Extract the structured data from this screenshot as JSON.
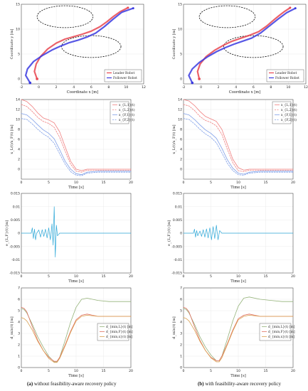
{
  "captions": {
    "left_tag": "(a)",
    "left_text": "without  feasibility-aware recovery policy",
    "right_tag": "(b)",
    "right_text": "with feasibility-aware recovery policy"
  },
  "colors": {
    "leader": "#e8454f",
    "follower": "#3a3ae0",
    "red_dash": "#f08080",
    "blue_dash": "#7f9fe8",
    "cyan": "#2ea8d8",
    "green": "#95b37a",
    "red_thin": "#e07060",
    "orange": "#d9a050"
  },
  "chart_data": [
    {
      "id": "traj-a",
      "type": "line",
      "xlabel": "Coordinate x [m]",
      "ylabel": "Coordinate y [m]",
      "xlim": [
        -2,
        12
      ],
      "ylim": [
        -1,
        15
      ],
      "xticks": [
        "-2",
        "0",
        "2",
        "4",
        "6",
        "8",
        "10",
        "12"
      ],
      "yticks": [
        "0",
        "5",
        "10",
        "15"
      ],
      "legend": {
        "position": "bottom-right",
        "entries": [
          "Leader Robot",
          "Follower Robot"
        ]
      },
      "obstacles": [
        {
          "cx": 3,
          "cy": 12.5,
          "rx": 3.2,
          "ry": 2.2
        },
        {
          "cx": 6,
          "cy": 6.5,
          "rx": 3.4,
          "ry": 2.2
        }
      ],
      "series": [
        {
          "name": "Leader Robot",
          "x": [
            -0.2,
            -0.5,
            -0.3,
            0.2,
            1,
            2,
            3,
            4,
            5,
            6,
            7,
            7.8,
            8.5,
            9.3,
            10.2
          ],
          "y": [
            0,
            1.5,
            3,
            4.5,
            6,
            7.2,
            8,
            8.5,
            9,
            9.6,
            10.5,
            11.5,
            12.5,
            13.5,
            14.3
          ]
        },
        {
          "name": "Follower Robot",
          "x": [
            -1,
            -1.5,
            -1.3,
            -0.6,
            0.5,
            1.5,
            2.5,
            3.5,
            4.5,
            5.5,
            6.5,
            7.5,
            8.5,
            9.5,
            10.8
          ],
          "y": [
            -0.8,
            0.7,
            2,
            3.5,
            4.8,
            5.8,
            6.6,
            7.3,
            7.8,
            8.4,
            9.2,
            10.5,
            12,
            13.4,
            14.2
          ]
        }
      ]
    },
    {
      "id": "traj-b",
      "type": "line",
      "xlabel": "Coordinate x [m]",
      "ylabel": "Coordinate y [m]",
      "xlim": [
        -2,
        12
      ],
      "ylim": [
        -1,
        15
      ],
      "xticks": [
        "-2",
        "0",
        "2",
        "4",
        "6",
        "8",
        "10",
        "12"
      ],
      "yticks": [
        "0",
        "5",
        "10",
        "15"
      ],
      "legend": {
        "position": "bottom-right",
        "entries": [
          "Leader Robot",
          "Follower Robot"
        ]
      },
      "obstacles": [
        {
          "cx": 3,
          "cy": 12.5,
          "rx": 3.2,
          "ry": 2.2
        },
        {
          "cx": 6,
          "cy": 6.5,
          "rx": 3.4,
          "ry": 2.2
        }
      ],
      "series": [
        {
          "name": "Leader Robot",
          "x": [
            -0.2,
            -0.4,
            -0.1,
            0.6,
            1.6,
            2.6,
            3.6,
            4.6,
            5.6,
            6.6,
            7.5,
            8.3,
            9,
            9.6,
            10.2
          ],
          "y": [
            0,
            1.5,
            3,
            4.5,
            5.8,
            6.8,
            7.6,
            8.2,
            8.8,
            9.5,
            10.6,
            11.8,
            12.8,
            13.6,
            14.3
          ]
        },
        {
          "name": "Follower Robot",
          "x": [
            -1,
            -1.4,
            -1,
            -0.2,
            0.8,
            1.8,
            2.8,
            3.8,
            4.8,
            5.8,
            6.8,
            7.8,
            8.8,
            9.8,
            10.8
          ],
          "y": [
            -0.8,
            0.7,
            2,
            3.3,
            4.5,
            5.5,
            6.3,
            7,
            7.6,
            8.2,
            9.2,
            10.6,
            12,
            13.3,
            14.2
          ]
        }
      ]
    },
    {
      "id": "state-a",
      "type": "line",
      "xlabel": "Time [s]",
      "ylabel": "x_L(t)/x_F(t) [m]",
      "xlim": [
        0,
        20
      ],
      "ylim": [
        -2,
        14
      ],
      "xticks": [
        "0",
        "5",
        "10",
        "15",
        "20"
      ],
      "yticks": [
        "0",
        "2",
        "4",
        "6",
        "8",
        "10",
        "12",
        "14"
      ],
      "legend": {
        "position": "top-right",
        "entries": [
          "x_{L,1}(t)",
          "x_{L,2}(t)",
          "x_{F,1}(t)",
          "x_{F,2}(t)"
        ]
      },
      "series": [
        {
          "name": "x_{L,1}(t)",
          "x": [
            0,
            1,
            2,
            3,
            4,
            5,
            6,
            7,
            8,
            9,
            10,
            11,
            12,
            14,
            16,
            18,
            20
          ],
          "y": [
            14,
            13.6,
            12.6,
            11.3,
            10.3,
            9.9,
            9.3,
            7.5,
            4.5,
            1.6,
            0,
            -0.3,
            0,
            0,
            0,
            0,
            0
          ]
        },
        {
          "name": "x_{L,2}(t)",
          "x": [
            0,
            1,
            2,
            3,
            4,
            5,
            6,
            7,
            8,
            9,
            10,
            11,
            12,
            14,
            16,
            18,
            20
          ],
          "y": [
            13,
            12.6,
            11.6,
            10.4,
            9.6,
            9.2,
            8.4,
            6.4,
            3.6,
            1,
            -0.4,
            -0.6,
            -0.2,
            -0.2,
            -0.2,
            -0.2,
            -0.2
          ]
        },
        {
          "name": "x_{F,1}(t)",
          "x": [
            0,
            1,
            2,
            3,
            4,
            5,
            6,
            7,
            8,
            9,
            10,
            11,
            12,
            14,
            16,
            18,
            20
          ],
          "y": [
            11.2,
            10.9,
            10,
            8.9,
            7.9,
            7.2,
            6.1,
            3.9,
            1.6,
            0,
            -0.9,
            -1.1,
            -0.6,
            -0.4,
            -0.4,
            -0.4,
            -0.4
          ]
        },
        {
          "name": "x_{F,2}(t)",
          "x": [
            0,
            1,
            2,
            3,
            4,
            5,
            6,
            7,
            8,
            9,
            10,
            11,
            12,
            14,
            16,
            18,
            20
          ],
          "y": [
            10.2,
            10,
            9.1,
            8,
            7.1,
            6.4,
            5.2,
            3.1,
            1,
            -0.5,
            -1.2,
            -1.3,
            -0.8,
            -0.6,
            -0.6,
            -0.6,
            -0.6
          ]
        }
      ]
    },
    {
      "id": "state-b",
      "type": "line",
      "xlabel": "Time [s]",
      "ylabel": "x_L(t)/x_F(t) [m]",
      "xlim": [
        0,
        20
      ],
      "ylim": [
        -2,
        14
      ],
      "xticks": [
        "0",
        "5",
        "10",
        "15",
        "20"
      ],
      "yticks": [
        "0",
        "2",
        "4",
        "6",
        "8",
        "10",
        "12",
        "14"
      ],
      "legend": {
        "position": "top-right",
        "entries": [
          "x_{L,1}(t)",
          "x_{L,2}(t)",
          "x_{F,1}(t)",
          "x_{F,2}(t)"
        ]
      },
      "series": [
        {
          "name": "x_{L,1}(t)",
          "x": [
            0,
            1,
            2,
            3,
            4,
            5,
            6,
            7,
            8,
            9,
            10,
            11,
            12,
            14,
            16,
            18,
            20
          ],
          "y": [
            14,
            13.7,
            12.8,
            11.6,
            10.6,
            10.1,
            9.6,
            8,
            5,
            2,
            0.3,
            -0.2,
            0,
            0,
            0,
            0,
            0
          ]
        },
        {
          "name": "x_{L,2}(t)",
          "x": [
            0,
            1,
            2,
            3,
            4,
            5,
            6,
            7,
            8,
            9,
            10,
            11,
            12,
            14,
            16,
            18,
            20
          ],
          "y": [
            13,
            12.7,
            11.8,
            10.6,
            9.8,
            9.4,
            8.7,
            7,
            4,
            1.3,
            -0.3,
            -0.5,
            -0.2,
            -0.2,
            -0.2,
            -0.2,
            -0.2
          ]
        },
        {
          "name": "x_{F,1}(t)",
          "x": [
            0,
            1,
            2,
            3,
            4,
            5,
            6,
            7,
            8,
            9,
            10,
            11,
            12,
            14,
            16,
            18,
            20
          ],
          "y": [
            11.2,
            10.9,
            10,
            8.9,
            7.9,
            7.2,
            6.2,
            4.2,
            1.9,
            0.2,
            -0.8,
            -1,
            -0.6,
            -0.4,
            -0.4,
            -0.4,
            -0.4
          ]
        },
        {
          "name": "x_{F,2}(t)",
          "x": [
            0,
            1,
            2,
            3,
            4,
            5,
            6,
            7,
            8,
            9,
            10,
            11,
            12,
            14,
            16,
            18,
            20
          ],
          "y": [
            10.2,
            10,
            9.1,
            8,
            7.1,
            6.4,
            5.3,
            3.3,
            1.2,
            -0.3,
            -1.1,
            -1.2,
            -0.8,
            -0.6,
            -0.6,
            -0.6,
            -0.6
          ]
        }
      ]
    },
    {
      "id": "error-a",
      "type": "line",
      "xlabel": "Time [s]",
      "ylabel": "e_{L,F}(t) [m]",
      "xlim": [
        0,
        20
      ],
      "ylim": [
        -0.015,
        0.015
      ],
      "xticks": [
        "0",
        "5",
        "10",
        "15",
        "20"
      ],
      "yticks": [
        "-0.015",
        "-0.01",
        "-0.005",
        "0",
        "0.005",
        "0.01",
        "0.015"
      ],
      "series": [
        {
          "name": "",
          "x": [
            0,
            1.8,
            2,
            2.2,
            2.4,
            2.6,
            2.8,
            3.2,
            3.5,
            3.8,
            4.1,
            4.4,
            4.7,
            5,
            5.3,
            5.6,
            5.8,
            6,
            6.2,
            6.4,
            6.6,
            7,
            20
          ],
          "y": [
            0,
            0,
            0.002,
            -0.002,
            0.0015,
            -0.0025,
            0,
            0.0012,
            -0.0015,
            0.0013,
            -0.0012,
            0.0015,
            -0.0018,
            0.002,
            -0.0025,
            0.0035,
            -0.0045,
            0.01,
            -0.009,
            0.003,
            -0.001,
            0,
            0
          ]
        }
      ]
    },
    {
      "id": "error-b",
      "type": "line",
      "xlabel": "Time [s]",
      "ylabel": "e_{L,F}(t) [m]",
      "xlim": [
        0,
        20
      ],
      "ylim": [
        -0.015,
        0.015
      ],
      "xticks": [
        "0",
        "5",
        "10",
        "15",
        "20"
      ],
      "yticks": [
        "-0.015",
        "-0.01",
        "-0.005",
        "0",
        "0.005",
        "0.01",
        "0.015"
      ],
      "series": [
        {
          "name": "",
          "x": [
            0,
            1.8,
            2,
            2.2,
            2.4,
            2.6,
            3,
            3.3,
            3.6,
            3.9,
            4.2,
            4.5,
            4.8,
            5.1,
            5.4,
            5.7,
            6,
            6.3,
            6.6,
            7,
            20
          ],
          "y": [
            0,
            0,
            0.0015,
            -0.0015,
            0.001,
            -0.001,
            0.0008,
            -0.0012,
            0.0013,
            -0.0015,
            0.0016,
            -0.0018,
            0.002,
            -0.0025,
            0.0025,
            -0.002,
            0.003,
            -0.0025,
            0.001,
            0,
            0
          ]
        }
      ]
    },
    {
      "id": "dist-a",
      "type": "line",
      "xlabel": "Time [s]",
      "ylabel": "d_min(t) [m]",
      "xlim": [
        0,
        20
      ],
      "ylim": [
        0,
        7
      ],
      "xticks": [
        "0",
        "5",
        "10",
        "15",
        "20"
      ],
      "yticks": [
        "0",
        "1",
        "2",
        "3",
        "4",
        "5",
        "6",
        "7"
      ],
      "legend": {
        "position": "center-right",
        "entries": [
          "d_{min,L}(t) [m]",
          "d_{min,F}(t) [m]",
          "d_{min,x}(t) [m]"
        ]
      },
      "series": [
        {
          "name": "d_{min,L}(t) [m]",
          "x": [
            0,
            0.5,
            1,
            2,
            3,
            4,
            5,
            6,
            6.5,
            7,
            8,
            9,
            10,
            11,
            12,
            14,
            16,
            18,
            20
          ],
          "y": [
            5.2,
            5.1,
            4.8,
            3.8,
            2.7,
            1.8,
            1,
            0.5,
            0.5,
            0.9,
            2.4,
            4,
            5.3,
            6,
            6.1,
            5.9,
            5.8,
            5.8,
            5.8
          ]
        },
        {
          "name": "d_{min,F}(t) [m]",
          "x": [
            0,
            0.5,
            1,
            2,
            3,
            4,
            5,
            6,
            6.5,
            7,
            8,
            9,
            10,
            11,
            12,
            14,
            16,
            18,
            20
          ],
          "y": [
            5.3,
            5.2,
            4.9,
            3.6,
            2.4,
            1.5,
            0.9,
            0.55,
            0.55,
            0.9,
            2,
            3.2,
            4.2,
            4.6,
            4.7,
            4.5,
            4.5,
            4.5,
            4.5
          ]
        },
        {
          "name": "d_{min,x}(t) [m]",
          "x": [
            0,
            0.5,
            1,
            2,
            3,
            4,
            5,
            6,
            6.5,
            7,
            8,
            9,
            10,
            11,
            12,
            14,
            16,
            18,
            20
          ],
          "y": [
            4.4,
            4.3,
            4.1,
            3.3,
            2.3,
            1.5,
            0.8,
            0.45,
            0.45,
            0.8,
            1.9,
            3.1,
            4.1,
            4.5,
            4.6,
            4.5,
            4.5,
            4.5,
            4.5
          ]
        }
      ]
    },
    {
      "id": "dist-b",
      "type": "line",
      "xlabel": "Time [s]",
      "ylabel": "d_min(t) [m]",
      "xlim": [
        0,
        20
      ],
      "ylim": [
        0,
        7
      ],
      "xticks": [
        "0",
        "5",
        "10",
        "15",
        "20"
      ],
      "yticks": [
        "0",
        "1",
        "2",
        "3",
        "4",
        "5",
        "6",
        "7"
      ],
      "legend": {
        "position": "center-right",
        "entries": [
          "d_{min,L}(t) [m]",
          "d_{min,F}(t) [m]",
          "d_{min,x}(t) [m]"
        ]
      },
      "series": [
        {
          "name": "d_{min,L}(t) [m]",
          "x": [
            0,
            0.5,
            1,
            2,
            3,
            4,
            5,
            6,
            6.5,
            7,
            8,
            9,
            10,
            11,
            12,
            14,
            16,
            18,
            20
          ],
          "y": [
            5.2,
            5.1,
            4.8,
            3.8,
            2.7,
            1.8,
            1.1,
            0.6,
            0.6,
            1,
            2.5,
            4.1,
            5.4,
            6.1,
            6.2,
            6,
            5.9,
            5.8,
            5.8
          ]
        },
        {
          "name": "d_{min,F}(t) [m]",
          "x": [
            0,
            0.5,
            1,
            2,
            3,
            4,
            5,
            6,
            6.5,
            7,
            8,
            9,
            10,
            11,
            12,
            14,
            16,
            18,
            20
          ],
          "y": [
            5.3,
            5.2,
            4.9,
            3.6,
            2.4,
            1.5,
            0.9,
            0.6,
            0.6,
            1,
            2.1,
            3.3,
            4.3,
            4.6,
            4.7,
            4.5,
            4.5,
            4.5,
            4.5
          ]
        },
        {
          "name": "d_{min,x}(t) [m]",
          "x": [
            0,
            0.5,
            1,
            2,
            3,
            4,
            5,
            6,
            6.5,
            7,
            8,
            9,
            10,
            11,
            12,
            14,
            16,
            18,
            20
          ],
          "y": [
            4.4,
            4.3,
            4.1,
            3.3,
            2.3,
            1.5,
            0.85,
            0.5,
            0.5,
            0.85,
            2,
            3.2,
            4.2,
            4.5,
            4.6,
            4.5,
            4.5,
            4.5,
            4.5
          ]
        }
      ]
    }
  ]
}
